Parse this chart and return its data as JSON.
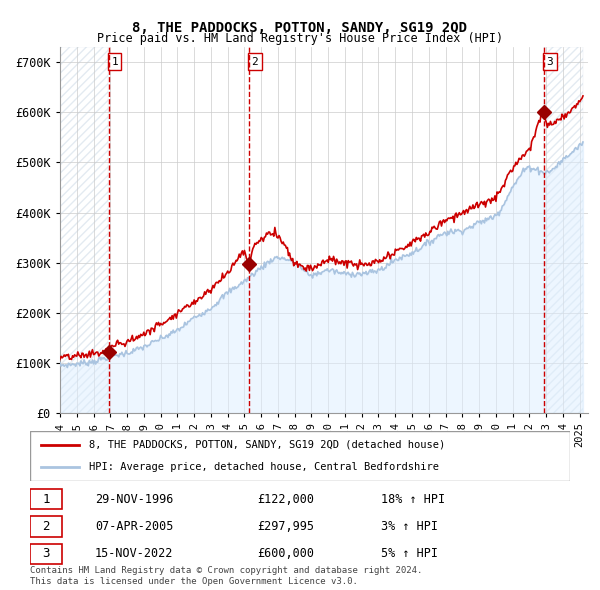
{
  "title": "8, THE PADDOCKS, POTTON, SANDY, SG19 2QD",
  "subtitle": "Price paid vs. HM Land Registry's House Price Index (HPI)",
  "ylabel": "",
  "xlim_start": 1994.0,
  "xlim_end": 2025.5,
  "ylim_min": 0,
  "ylim_max": 730000,
  "yticks": [
    0,
    100000,
    200000,
    300000,
    400000,
    500000,
    600000,
    700000
  ],
  "ytick_labels": [
    "£0",
    "£100K",
    "£200K",
    "£300K",
    "£400K",
    "£500K",
    "£600K",
    "£700K"
  ],
  "hpi_color": "#aac4e0",
  "price_color": "#cc0000",
  "sale_marker_color": "#990000",
  "dashed_line_color": "#cc0000",
  "bg_fill_color": "#ddeeff",
  "hatch_color": "#bbccdd",
  "grid_color": "#cccccc",
  "sale1_x": 1996.91,
  "sale1_y": 122000,
  "sale1_label": "1",
  "sale2_x": 2005.27,
  "sale2_y": 297995,
  "sale2_label": "2",
  "sale3_x": 2022.88,
  "sale3_y": 600000,
  "sale3_label": "3",
  "legend_line1": "8, THE PADDOCKS, POTTON, SANDY, SG19 2QD (detached house)",
  "legend_line2": "HPI: Average price, detached house, Central Bedfordshire",
  "table_rows": [
    {
      "num": "1",
      "date": "29-NOV-1996",
      "price": "£122,000",
      "hpi": "18% ↑ HPI"
    },
    {
      "num": "2",
      "date": "07-APR-2005",
      "price": "£297,995",
      "hpi": "3% ↑ HPI"
    },
    {
      "num": "3",
      "date": "15-NOV-2022",
      "price": "£600,000",
      "hpi": "5% ↑ HPI"
    }
  ],
  "footnote1": "Contains HM Land Registry data © Crown copyright and database right 2024.",
  "footnote2": "This data is licensed under the Open Government Licence v3.0."
}
